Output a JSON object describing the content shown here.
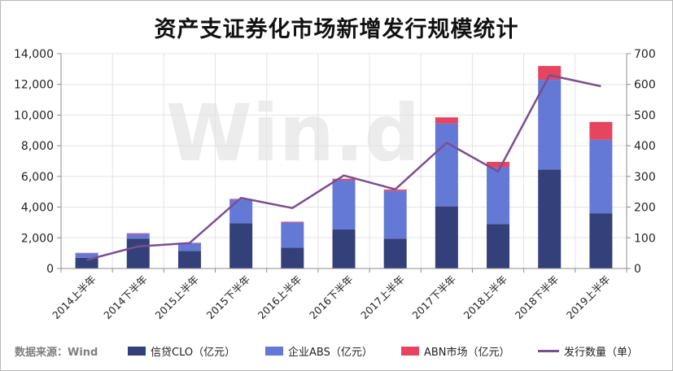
{
  "title": "资产支证券化市场新增发行规模统计",
  "source": "数据来源：Wind",
  "watermark": "Win.d",
  "colors": {
    "clo": "#34407a",
    "abs": "#6479d6",
    "abn": "#e6455f",
    "count": "#7a4f8f",
    "grid": "#e3e3e3",
    "axis": "#8c8c8c"
  },
  "chart_data": {
    "type": "bar",
    "stacked": true,
    "categories": [
      "2014上半年",
      "2014下半年",
      "2015上半年",
      "2015下半年",
      "2016上半年",
      "2016下半年",
      "2017上半年",
      "2017下半年",
      "2018上半年",
      "2018下半年",
      "2019上半年"
    ],
    "series": [
      {
        "name": "信贷CLO（亿元）",
        "axis": "left",
        "values": [
          700,
          1950,
          1150,
          2950,
          1350,
          2550,
          1950,
          4050,
          2900,
          6450,
          3600
        ]
      },
      {
        "name": "企业ABS（亿元）",
        "axis": "left",
        "values": [
          300,
          300,
          500,
          1550,
          1650,
          3200,
          3100,
          5400,
          3700,
          5850,
          4800
        ]
      },
      {
        "name": "ABN市场（亿元）",
        "axis": "left",
        "values": [
          20,
          50,
          30,
          40,
          50,
          100,
          100,
          400,
          350,
          900,
          1150
        ]
      },
      {
        "name": "发行数量（单）",
        "axis": "right",
        "type": "line",
        "values": [
          28,
          72,
          83,
          230,
          197,
          303,
          258,
          410,
          316,
          630,
          594
        ]
      }
    ],
    "y_left": {
      "min": 0,
      "max": 14000,
      "step": 2000,
      "tick_labels": [
        "0",
        "2,000",
        "4,000",
        "6,000",
        "8,000",
        "10,000",
        "12,000",
        "14,000"
      ]
    },
    "y_right": {
      "min": 0,
      "max": 700,
      "step": 100,
      "tick_labels": [
        "0",
        "100",
        "200",
        "300",
        "400",
        "500",
        "600",
        "700"
      ]
    },
    "grid": true,
    "legend_position": "bottom"
  }
}
